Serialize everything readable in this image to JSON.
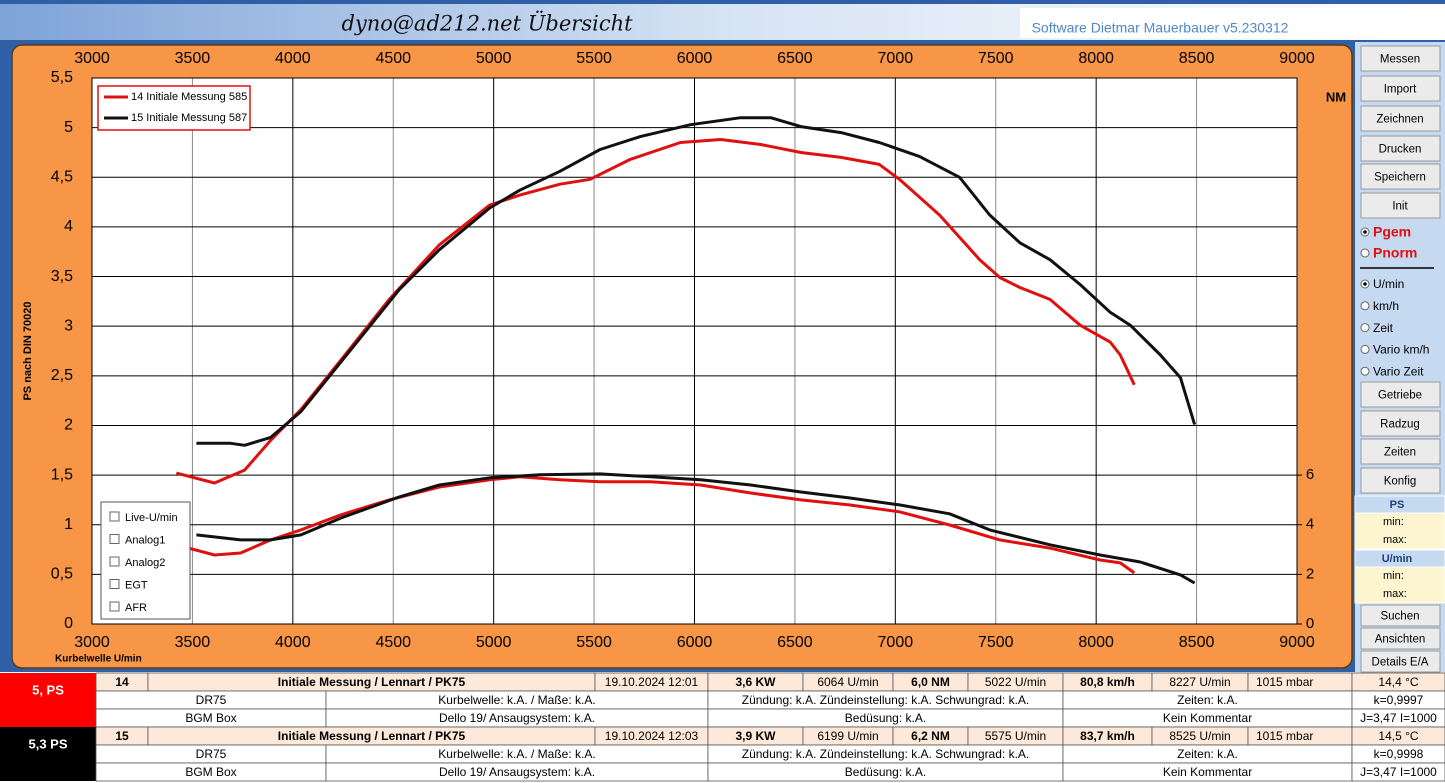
{
  "title": "dyno@ad212.net  Übersicht",
  "software": "Software Dietmar Mauerbauer v5.230312",
  "chart_data": {
    "type": "line",
    "y_label": "PS nach DIN 70020",
    "x_label": "Kurbelwelle U/min",
    "y2_label": "NM",
    "xlim": [
      3000,
      9000
    ],
    "xticks": [
      3000,
      3500,
      4000,
      4500,
      5000,
      5500,
      6000,
      6500,
      7000,
      7500,
      8000,
      8500,
      9000
    ],
    "ylim": [
      0,
      5.5
    ],
    "yticks": [
      0,
      {
        "value": 0.5,
        "label": "0,5"
      },
      1,
      {
        "value": 1.5,
        "label": "1,5"
      },
      2,
      {
        "value": 2.5,
        "label": "2,5"
      },
      3,
      {
        "value": 3.5,
        "label": "3,5"
      },
      4,
      {
        "value": 4.5,
        "label": "4,5"
      },
      5,
      {
        "value": 5.5,
        "label": "5,5"
      }
    ],
    "y2lim": [
      0,
      22
    ],
    "y2ticks": [
      0,
      2,
      4,
      6
    ],
    "grid": true,
    "legend": "top-left",
    "series": [
      {
        "name": "14  Initiale Messung 585",
        "color": "#e01010",
        "x": [
          3420,
          3610,
          3760,
          3890,
          4040,
          4240,
          4480,
          4730,
          4980,
          5130,
          5330,
          5480,
          5680,
          5930,
          6130,
          6330,
          6530,
          6730,
          6920,
          7020,
          7220,
          7420,
          7520,
          7620,
          7770,
          7920,
          8070,
          8120,
          8190
        ],
        "values": [
          1.52,
          1.42,
          1.55,
          1.85,
          2.16,
          2.66,
          3.27,
          3.82,
          4.22,
          4.32,
          4.43,
          4.48,
          4.68,
          4.85,
          4.88,
          4.83,
          4.75,
          4.7,
          4.63,
          4.48,
          4.12,
          3.67,
          3.49,
          3.39,
          3.27,
          3.01,
          2.84,
          2.71,
          2.41
        ]
      },
      {
        "name": "15  Initiale Messung 587",
        "color": "#111111",
        "x": [
          3520,
          3690,
          3760,
          3890,
          4040,
          4240,
          4530,
          4730,
          4980,
          5130,
          5330,
          5530,
          5730,
          5980,
          6230,
          6380,
          6530,
          6730,
          6920,
          7120,
          7320,
          7470,
          7620,
          7770,
          7920,
          8070,
          8170,
          8320,
          8420,
          8490
        ],
        "values": [
          1.82,
          1.82,
          1.8,
          1.88,
          2.14,
          2.64,
          3.37,
          3.77,
          4.19,
          4.37,
          4.56,
          4.78,
          4.91,
          5.03,
          5.1,
          5.1,
          5.01,
          4.95,
          4.85,
          4.71,
          4.5,
          4.12,
          3.84,
          3.67,
          3.42,
          3.14,
          3.01,
          2.71,
          2.48,
          2.01
        ]
      },
      {
        "color": "#e01010",
        "axis": "y2",
        "x": [
          3420,
          3610,
          3740,
          3890,
          4040,
          4240,
          4480,
          4730,
          4980,
          5130,
          5330,
          5530,
          5780,
          6030,
          6280,
          6530,
          6770,
          7020,
          7270,
          7520,
          7770,
          8020,
          8120,
          8190
        ],
        "values": [
          3.19,
          2.78,
          2.86,
          3.39,
          3.79,
          4.4,
          5.0,
          5.52,
          5.81,
          5.93,
          5.81,
          5.73,
          5.73,
          5.6,
          5.28,
          5.0,
          4.8,
          4.52,
          3.99,
          3.39,
          3.06,
          2.58,
          2.46,
          2.06
        ]
      },
      {
        "color": "#111111",
        "axis": "y2",
        "x": [
          3520,
          3740,
          3890,
          4040,
          4240,
          4530,
          4730,
          4980,
          5230,
          5530,
          5780,
          6030,
          6280,
          6530,
          6770,
          7020,
          7270,
          7470,
          7770,
          8020,
          8220,
          8420,
          8490
        ],
        "values": [
          3.59,
          3.39,
          3.39,
          3.59,
          4.27,
          5.12,
          5.6,
          5.89,
          6.01,
          6.05,
          5.93,
          5.81,
          5.6,
          5.32,
          5.08,
          4.8,
          4.44,
          3.79,
          3.19,
          2.78,
          2.5,
          1.98,
          1.65
        ]
      }
    ]
  },
  "checkboxes": [
    "Live-U/min",
    "Analog1",
    "Analog2",
    "EGT",
    "AFR"
  ],
  "buttons_top": [
    "Messen",
    "Import",
    "Zeichnen",
    "Drucken",
    "Speichern",
    "Init"
  ],
  "power_modes": [
    "Pgem",
    "Pnorm"
  ],
  "x_modes": [
    "U/min",
    "km/h",
    "Zeit",
    "Vario km/h",
    "Vario Zeit"
  ],
  "buttons_mid": [
    "Getriebe",
    "Radzug",
    "Zeiten",
    "Konfig"
  ],
  "info": [
    {
      "head": "PS",
      "min": "min:",
      "max": "max:"
    },
    {
      "head": "U/min",
      "min": "min:",
      "max": "max:"
    }
  ],
  "buttons_bottom": [
    "Suchen",
    "Ansichten",
    "Details E/A"
  ],
  "table": {
    "runs": [
      {
        "summary": "5, PS",
        "row1": [
          "14",
          "Initiale Messung / Lennart / PK75",
          "19.10.2024 12:01",
          "3,6  KW",
          "6064  U/min",
          "6,0  NM",
          "5022  U/min",
          "80,8 km/h",
          "8227  U/min",
          "1015  mbar",
          "14,4 °C"
        ],
        "row2": [
          "DR75",
          "Kurbelwelle: k.A. / Maße: k.A.",
          "Zündung: k.A.  Zündeinstellung: k.A. Schwungrad: k.A.",
          "Zeiten: k.A.",
          "k=0,9997"
        ],
        "row3": [
          "BGM Box",
          "Dello 19/ Ansaugsystem: k.A.",
          "Bedüsung: k.A.",
          "Kein Kommentar",
          "J=3,47 I=1000"
        ]
      },
      {
        "summary": "5,3 PS",
        "row1": [
          "15",
          "Initiale Messung / Lennart / PK75",
          "19.10.2024 12:03",
          "3,9  KW",
          "6199  U/min",
          "6,2  NM",
          "5575  U/min",
          "83,7 km/h",
          "8525  U/min",
          "1015  mbar",
          "14,5 °C"
        ],
        "row2": [
          "DR75",
          "Kurbelwelle: k.A. / Maße: k.A.",
          "Zündung: k.A.  Zündeinstellung: k.A. Schwungrad: k.A.",
          "Zeiten: k.A.",
          "k=0,9998"
        ],
        "row3": [
          "BGM Box",
          "Dello 19/ Ansaugsystem: k.A.",
          "Bedüsung: k.A.",
          "Kein Kommentar",
          "J=3,47 I=1000"
        ]
      }
    ]
  }
}
